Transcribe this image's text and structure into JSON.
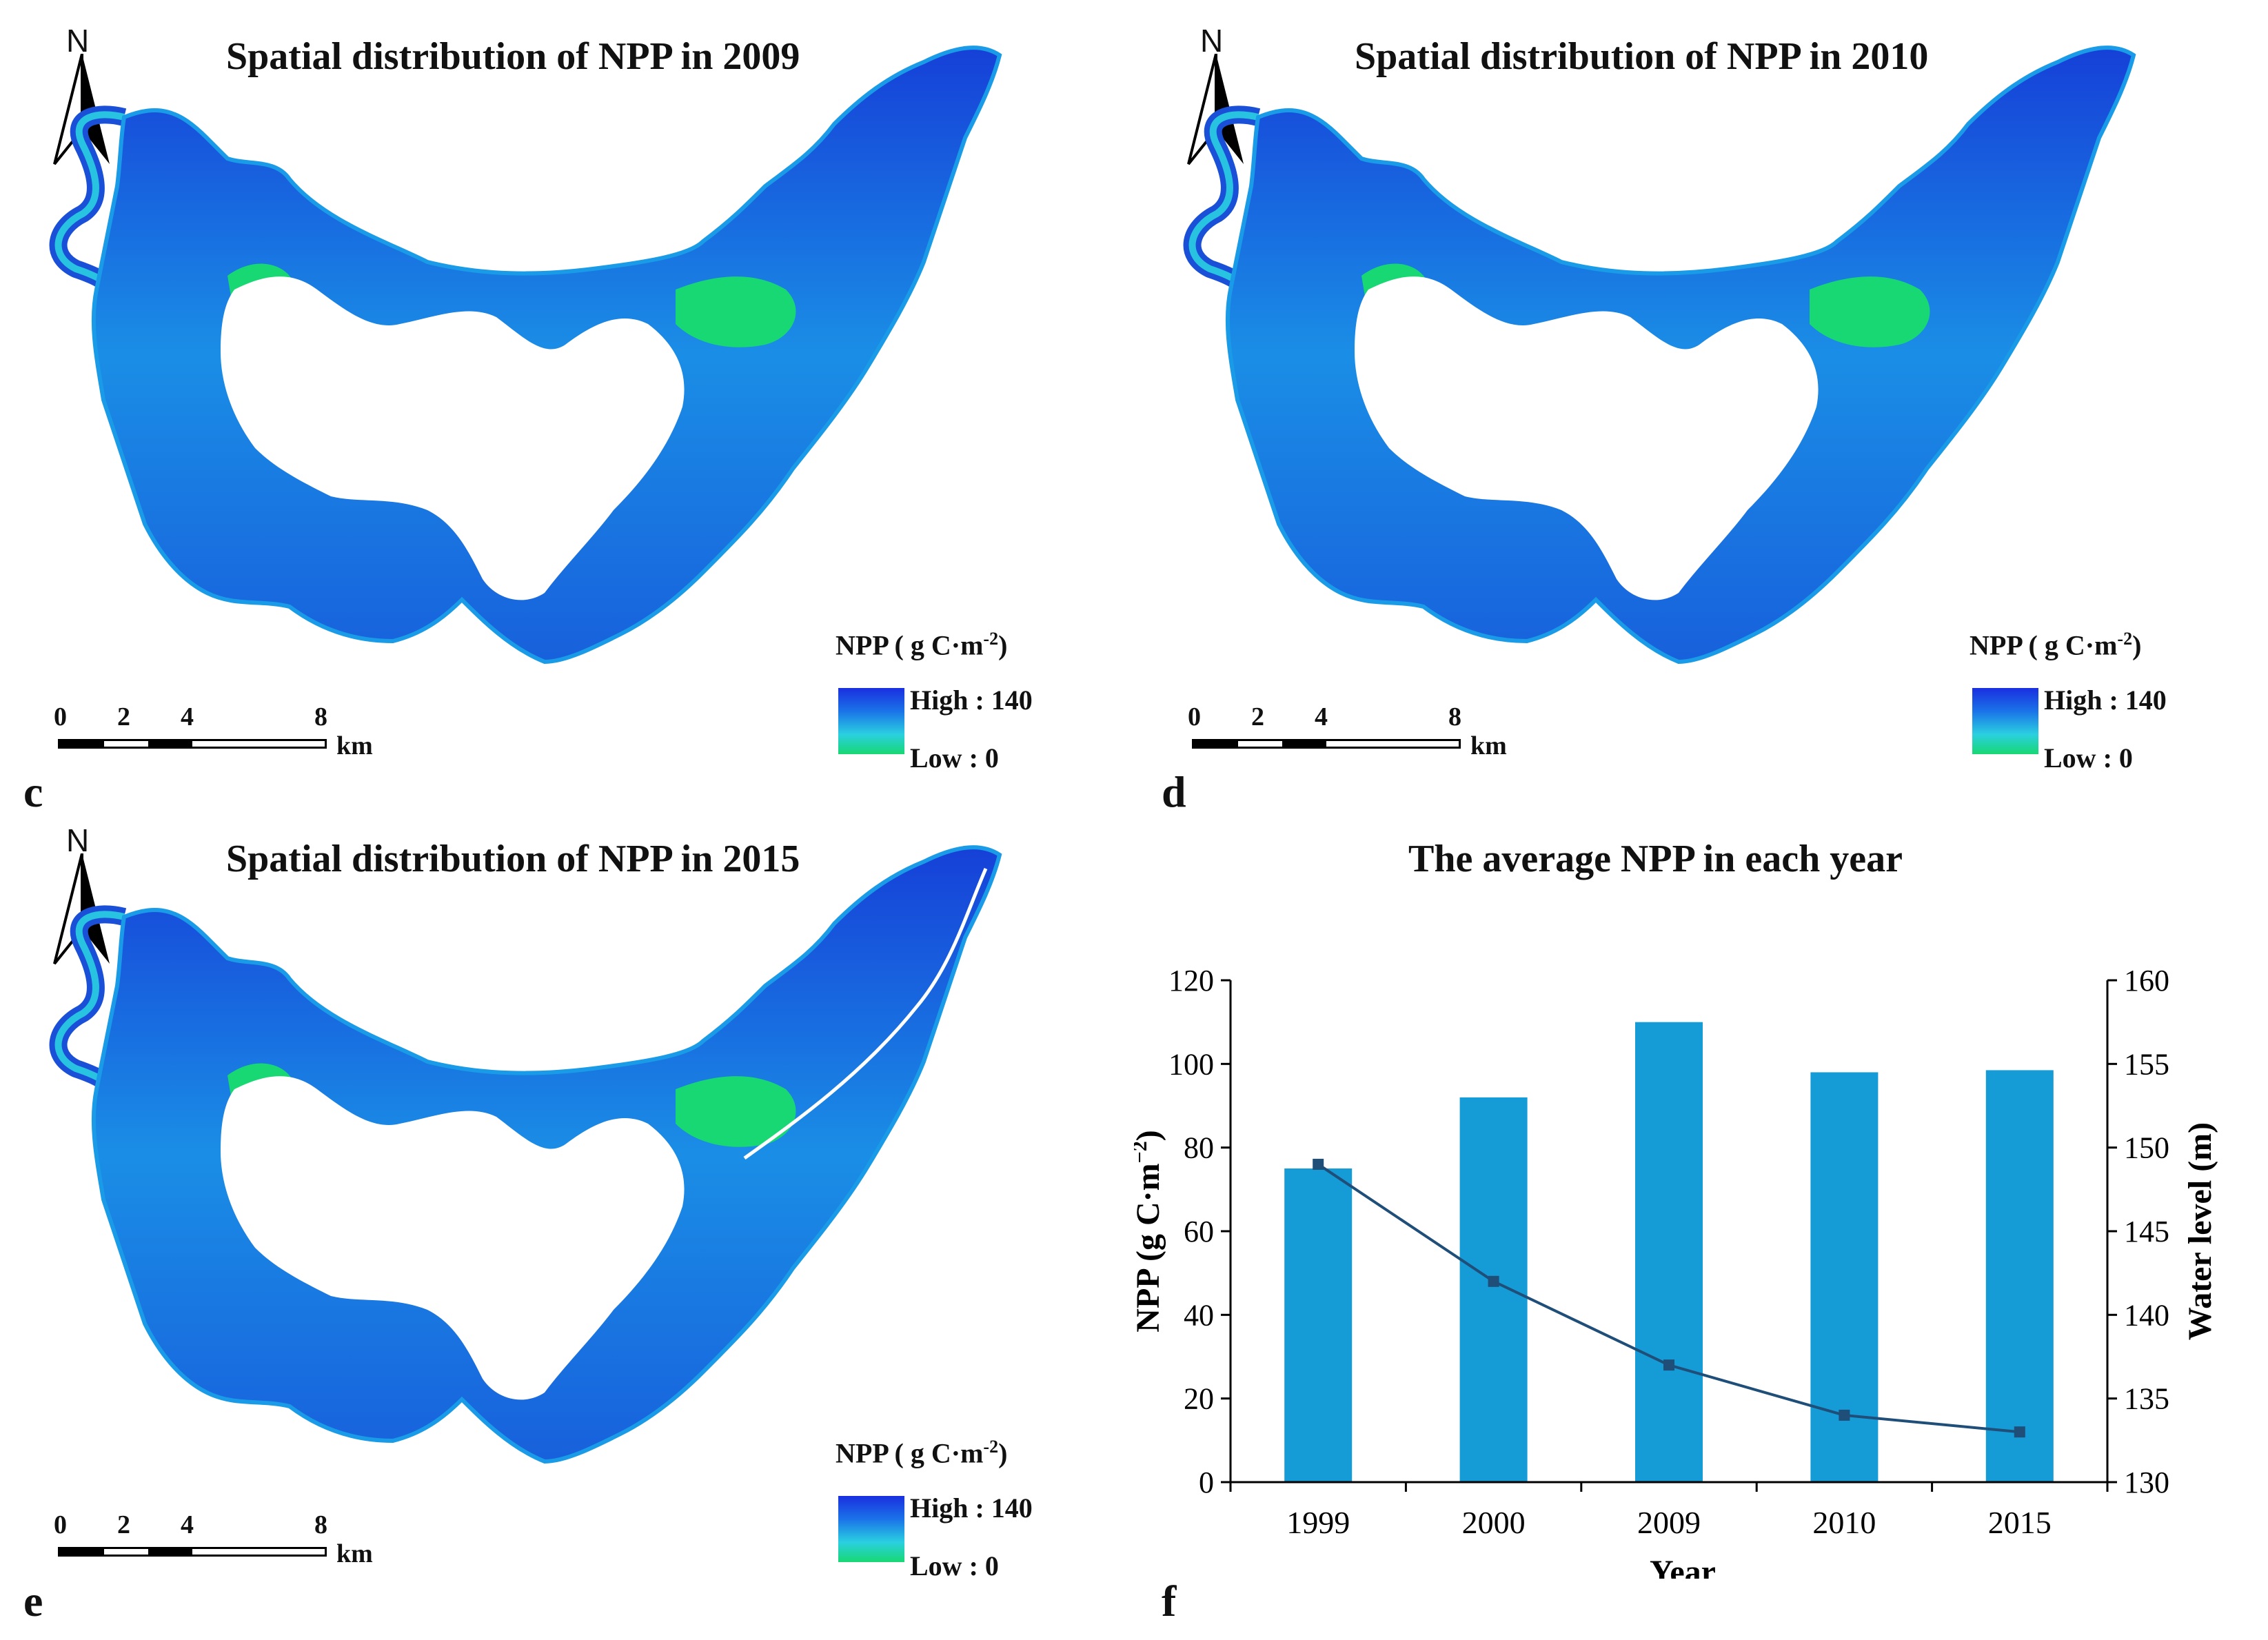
{
  "panels": [
    {
      "id": "c",
      "letter": "c",
      "title": "Spatial distribution of NPP in 2009"
    },
    {
      "id": "d",
      "letter": "d",
      "title": "Spatial distribution of NPP in 2010"
    },
    {
      "id": "e",
      "letter": "e",
      "title": "Spatial distribution of NPP in 2015"
    },
    {
      "id": "f",
      "letter": "f",
      "title": "The average NPP in each year"
    }
  ],
  "north_label": "N",
  "legend": {
    "title": "NPP ( g C·m",
    "title_sup": "-2",
    "title_end": ")",
    "high": "High : 140",
    "low": "Low : 0"
  },
  "scale": {
    "ticks": [
      "0",
      "2",
      "4",
      "8"
    ],
    "unit": "km"
  },
  "colors": {
    "high": "#1a2fe0",
    "mid": "#1a9be8",
    "low": "#18d873",
    "bar": "#159bd6",
    "line": "#1f4e79"
  },
  "chart_data": {
    "type": "bar",
    "title": "The average NPP in each year",
    "categories": [
      "1999",
      "2000",
      "2009",
      "2010",
      "2015"
    ],
    "series": [
      {
        "name": "NPP",
        "axis": "left",
        "type": "bar",
        "values": [
          75,
          92,
          110,
          98,
          98.5
        ]
      },
      {
        "name": "Water level",
        "axis": "right",
        "type": "line",
        "values": [
          149,
          142,
          137,
          134,
          133
        ]
      }
    ],
    "xlabel": "Year",
    "ylabel": "NPP (g C·m",
    "ylabel_sup": "−2",
    "ylabel_end": ")",
    "y2label": "Water level (m)",
    "ylim": [
      0,
      120
    ],
    "y2lim": [
      130,
      160
    ],
    "yticks": [
      "0",
      "20",
      "40",
      "60",
      "80",
      "100",
      "120"
    ],
    "y2ticks": [
      "130",
      "135",
      "140",
      "145",
      "150",
      "155",
      "160"
    ]
  }
}
